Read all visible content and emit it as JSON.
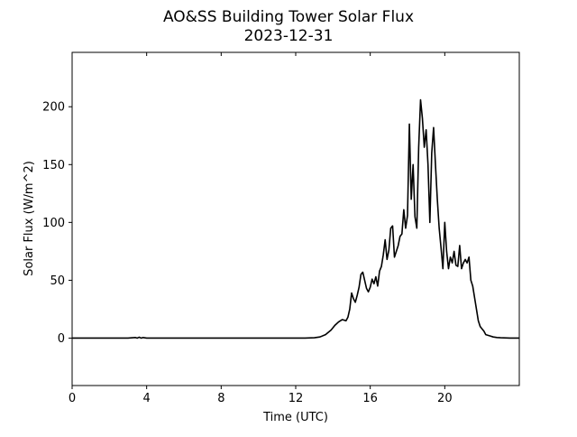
{
  "chart_data": {
    "type": "line",
    "title": "AO&SS Building Tower Solar Flux",
    "subtitle": "2023-12-31",
    "xlabel": "Time (UTC)",
    "ylabel": "Solar Flux (W/m^2)",
    "xlim": [
      0,
      24
    ],
    "ylim": [
      -41,
      247
    ],
    "xticks": [
      0,
      4,
      8,
      12,
      16,
      20
    ],
    "yticks": [
      0,
      50,
      100,
      150,
      200
    ],
    "grid": false,
    "line_color": "#000000",
    "series": [
      {
        "x": [
          0,
          1,
          2,
          3,
          3.4,
          3.5,
          3.6,
          3.7,
          3.8,
          4,
          5,
          6,
          7,
          8,
          9,
          10,
          11,
          12,
          12.5,
          13,
          13.3,
          13.6,
          13.9,
          14.1,
          14.3,
          14.5,
          14.7,
          14.8,
          14.9,
          15.0,
          15.1,
          15.2,
          15.3,
          15.4,
          15.5,
          15.6,
          15.7,
          15.8,
          15.9,
          16.0,
          16.1,
          16.2,
          16.3,
          16.4,
          16.5,
          16.6,
          16.7,
          16.8,
          16.9,
          17.0,
          17.1,
          17.2,
          17.3,
          17.4,
          17.5,
          17.6,
          17.7,
          17.8,
          17.9,
          18.0,
          18.1,
          18.2,
          18.3,
          18.4,
          18.5,
          18.6,
          18.7,
          18.8,
          18.9,
          19.0,
          19.1,
          19.2,
          19.3,
          19.4,
          19.5,
          19.6,
          19.7,
          19.8,
          19.9,
          20.0,
          20.1,
          20.2,
          20.3,
          20.4,
          20.5,
          20.6,
          20.7,
          20.8,
          20.9,
          21.0,
          21.1,
          21.2,
          21.3,
          21.4,
          21.5,
          21.6,
          21.7,
          21.8,
          21.9,
          22.0,
          22.1,
          22.2,
          22.4,
          22.6,
          22.8,
          23.0,
          23.5,
          24.0
        ],
        "y": [
          0,
          0,
          0,
          0,
          0.5,
          0,
          0.8,
          0,
          0.5,
          0,
          0,
          0,
          0,
          0,
          0,
          0,
          0,
          0,
          0,
          0.3,
          1,
          3,
          7,
          11,
          14,
          16,
          15,
          18,
          25,
          39,
          34,
          31,
          37,
          44,
          55,
          57,
          50,
          43,
          40,
          44,
          51,
          47,
          53,
          45,
          58,
          62,
          72,
          85,
          68,
          76,
          95,
          97,
          70,
          75,
          80,
          88,
          90,
          111,
          95,
          106,
          185,
          120,
          150,
          105,
          95,
          165,
          206,
          190,
          165,
          180,
          150,
          100,
          160,
          182,
          150,
          120,
          95,
          78,
          60,
          100,
          75,
          60,
          70,
          65,
          75,
          63,
          62,
          80,
          60,
          65,
          68,
          65,
          70,
          50,
          45,
          35,
          25,
          15,
          10,
          8,
          6,
          3,
          2,
          1,
          0.5,
          0.3,
          0,
          0
        ]
      }
    ]
  }
}
